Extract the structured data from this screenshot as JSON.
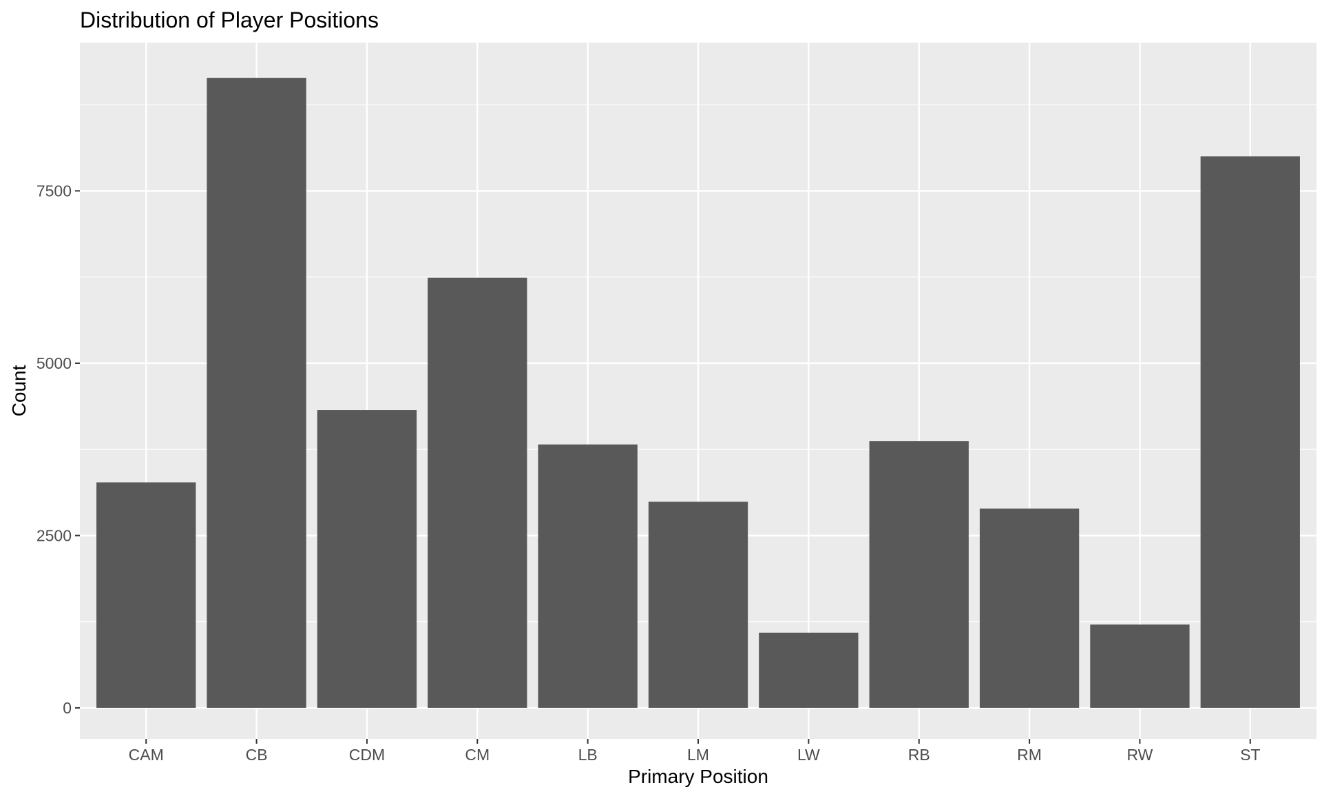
{
  "chart_data": {
    "type": "bar",
    "title": "Distribution of Player Positions",
    "xlabel": "Primary Position",
    "ylabel": "Count",
    "categories": [
      "CAM",
      "CB",
      "CDM",
      "CM",
      "LB",
      "LM",
      "LW",
      "RB",
      "RM",
      "RW",
      "ST"
    ],
    "values": [
      3270,
      9140,
      4320,
      6240,
      3820,
      2990,
      1090,
      3870,
      2890,
      1210,
      8000
    ],
    "ylim": [
      -450,
      9650
    ],
    "yticks": [
      0,
      2500,
      5000,
      7500
    ],
    "ytick_labels": [
      "0",
      "2500",
      "5000",
      "7500"
    ],
    "y_minor_ticks": [
      1250,
      3750,
      6250,
      8750
    ],
    "grid": true,
    "legend": "none",
    "colors": {
      "bar": "#595959",
      "panel_background": "#ebebeb",
      "grid_line": "#ffffff",
      "tick_text": "#4d4d4d",
      "title_text": "#000000"
    }
  }
}
